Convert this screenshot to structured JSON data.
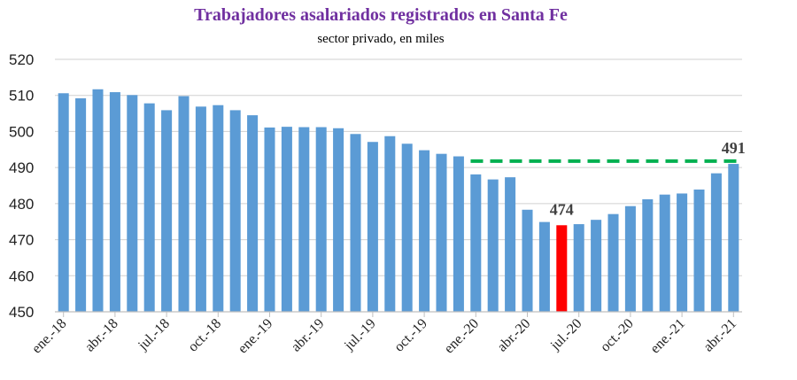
{
  "chart_data": {
    "type": "bar",
    "title": "Trabajadores asalariados registrados en Santa Fe",
    "subtitle": "sector privado, en miles",
    "xlabel": "",
    "ylabel": "",
    "ylim": [
      450,
      520
    ],
    "yticks": [
      450,
      460,
      470,
      480,
      490,
      500,
      510,
      520
    ],
    "grid": true,
    "categories": [
      "ene.-18",
      "feb.-18",
      "mar.-18",
      "abr.-18",
      "may.-18",
      "jun.-18",
      "jul.-18",
      "ago.-18",
      "sep.-18",
      "oct.-18",
      "nov.-18",
      "dic.-18",
      "ene.-19",
      "feb.-19",
      "mar.-19",
      "abr.-19",
      "may.-19",
      "jun.-19",
      "jul.-19",
      "ago.-19",
      "sep.-19",
      "oct.-19",
      "nov.-19",
      "dic.-19",
      "ene.-20",
      "feb.-20",
      "mar.-20",
      "abr.-20",
      "may.-20",
      "jun.-20",
      "jul.-20",
      "ago.-20",
      "sep.-20",
      "oct.-20",
      "nov.-20",
      "dic.-20",
      "ene.-21",
      "feb.-21",
      "mar.-21",
      "abr.-21"
    ],
    "x_tick_labels": [
      "ene.-18",
      "abr.-18",
      "jul.-18",
      "oct.-18",
      "ene.-19",
      "abr.-19",
      "jul.-19",
      "oct.-19",
      "ene.-20",
      "abr.-20",
      "jul.-20",
      "oct.-20",
      "ene.-21",
      "abr.-21"
    ],
    "values": [
      510.6,
      509.2,
      511.7,
      510.9,
      510.1,
      507.8,
      505.9,
      509.8,
      506.9,
      507.3,
      505.9,
      504.5,
      501.1,
      501.3,
      501.2,
      501.2,
      500.9,
      499.3,
      497.1,
      498.7,
      496.6,
      494.8,
      493.8,
      493.1,
      488.1,
      486.7,
      487.3,
      478.3,
      474.9,
      474.0,
      474.3,
      475.5,
      477.1,
      479.3,
      481.2,
      482.5,
      482.8,
      483.9,
      488.4,
      491.0
    ],
    "colors": {
      "bar": "#5b9bd5",
      "highlight": "#ff0000",
      "reference_line": "#00b050",
      "title": "#7030a0"
    },
    "highlight_index": 29,
    "annotations": [
      {
        "label": "474",
        "category": "jun.-20",
        "value": 474
      },
      {
        "label": "491",
        "category": "abr.-21",
        "value": 491
      }
    ],
    "reference_line": {
      "value": 491.8,
      "from": "ene.-20",
      "to": "abr.-21",
      "style": "dashed"
    }
  }
}
